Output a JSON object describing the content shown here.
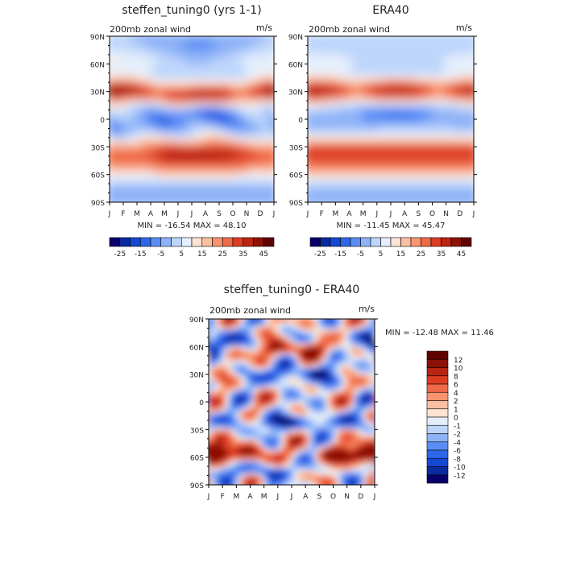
{
  "chart_data": [
    {
      "type": "heatmap",
      "title": "steffen_tuning0 (yrs 1-1)",
      "subtitle": "200mb zonal wind",
      "units": "m/s",
      "x_ticks": [
        "J",
        "F",
        "M",
        "A",
        "M",
        "J",
        "J",
        "A",
        "S",
        "O",
        "N",
        "D",
        "J"
      ],
      "y_ticks": [
        "90N",
        "60N",
        "30N",
        "0",
        "30S",
        "60S",
        "90S"
      ],
      "y_values": [
        90,
        60,
        30,
        0,
        -30,
        -60,
        -90
      ],
      "stats": "MIN = -16.54 MAX =  48.10",
      "colorbar_labels": [
        "-25",
        "-15",
        "-5",
        "5",
        "15",
        "25",
        "35",
        "45"
      ],
      "levels": [
        -25,
        -20,
        -15,
        -10,
        -5,
        0,
        5,
        10,
        15,
        20,
        25,
        30,
        35,
        40,
        45
      ],
      "max_jets": [
        {
          "lat": 31,
          "month": 0.6,
          "value": 48.1
        },
        {
          "lat": 30,
          "month": 11.5,
          "value": 44
        },
        {
          "lat": -35,
          "month": 6.3,
          "value": 42
        },
        {
          "lat": -50,
          "month": 0.3,
          "value": 38
        }
      ],
      "min": -16.54,
      "max": 48.1
    },
    {
      "type": "heatmap",
      "title": "ERA40",
      "subtitle": "200mb zonal wind",
      "units": "m/s",
      "x_ticks": [
        "J",
        "F",
        "M",
        "A",
        "M",
        "J",
        "J",
        "A",
        "S",
        "O",
        "N",
        "D",
        "J"
      ],
      "y_ticks": [
        "90N",
        "60N",
        "30N",
        "0",
        "30S",
        "60S",
        "90S"
      ],
      "y_values": [
        90,
        60,
        30,
        0,
        -30,
        -60,
        -90
      ],
      "stats": "MIN = -11.45 MAX =  45.47",
      "colorbar_labels": [
        "-25",
        "-15",
        "-5",
        "5",
        "15",
        "25",
        "35",
        "45"
      ],
      "levels": [
        -25,
        -20,
        -15,
        -10,
        -5,
        0,
        5,
        10,
        15,
        20,
        25,
        30,
        35,
        40,
        45
      ],
      "min": -11.45,
      "max": 45.47
    },
    {
      "type": "heatmap",
      "title": "steffen_tuning0 - ERA40",
      "subtitle": "200mb zonal wind",
      "units": "m/s",
      "x_ticks": [
        "J",
        "F",
        "M",
        "A",
        "M",
        "J",
        "J",
        "A",
        "S",
        "O",
        "N",
        "D",
        "J"
      ],
      "y_ticks": [
        "90N",
        "60N",
        "30N",
        "0",
        "30S",
        "60S",
        "90S"
      ],
      "y_values": [
        90,
        60,
        30,
        0,
        -30,
        -60,
        -90
      ],
      "stats": "MIN = -12.48 MAX =  11.46",
      "colorbar_labels": [
        "12",
        "10",
        "8",
        "6",
        "4",
        "2",
        "1",
        "0",
        "-1",
        "-2",
        "-4",
        "-6",
        "-8",
        "-10",
        "-12"
      ],
      "levels": [
        -12,
        -10,
        -8,
        -6,
        -4,
        -2,
        -1,
        0,
        1,
        2,
        4,
        6,
        8,
        10,
        12
      ],
      "min": -12.48,
      "max": 11.46
    }
  ],
  "colors": {
    "sequence": [
      "#08006a",
      "#0a2aa0",
      "#1548d2",
      "#2e66ea",
      "#5a8cf4",
      "#8fb3f8",
      "#bed6fb",
      "#e4eefc",
      "#fde3d2",
      "#fbbfa2",
      "#f89570",
      "#ef6a47",
      "#dc3d22",
      "#b92413",
      "#8c1106",
      "#600300"
    ]
  }
}
